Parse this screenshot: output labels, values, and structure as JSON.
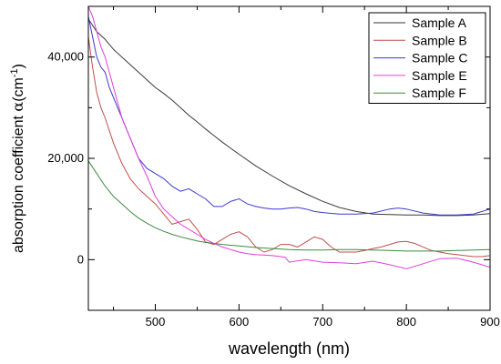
{
  "chart_data": {
    "type": "line",
    "title": "",
    "xlabel": "wavelength (nm)",
    "ylabel_main": "absorption coefficient ",
    "ylabel_symbol": "α",
    "ylabel_unit_open": "(cm",
    "ylabel_unit_exp": "-1",
    "ylabel_unit_close": ")",
    "xlim": [
      420,
      900
    ],
    "ylim": [
      -10000,
      50000
    ],
    "x_ticks": [
      500,
      600,
      700,
      800,
      900
    ],
    "x_tick_labels": [
      "500",
      "600",
      "700",
      "800",
      "900"
    ],
    "x_minor_ticks": [
      450,
      550,
      650,
      750,
      850
    ],
    "y_ticks": [
      0,
      20000,
      40000
    ],
    "y_tick_labels": [
      "0",
      "20,000",
      "40,000"
    ],
    "y_minor_ticks": [
      -10000,
      10000,
      30000,
      50000
    ],
    "grid": false,
    "legend_position": "top-right",
    "series": [
      {
        "name": "Sample A",
        "color": "#3a3a3a",
        "x": [
          420,
          430,
          440,
          450,
          460,
          470,
          480,
          490,
          500,
          510,
          520,
          530,
          540,
          550,
          560,
          570,
          580,
          590,
          600,
          620,
          640,
          660,
          680,
          700,
          720,
          740,
          760,
          780,
          800,
          820,
          840,
          860,
          880,
          900
        ],
        "y": [
          47500,
          45000,
          43500,
          41500,
          40000,
          38500,
          37000,
          35500,
          34000,
          32800,
          31500,
          30000,
          28500,
          27200,
          25800,
          24500,
          23200,
          22000,
          20800,
          18500,
          16500,
          14600,
          13000,
          11500,
          10300,
          9500,
          9000,
          8900,
          8800,
          8800,
          8700,
          8700,
          8800,
          9100
        ]
      },
      {
        "name": "Sample B",
        "color": "#c0504d",
        "x": [
          420,
          425,
          430,
          435,
          440,
          450,
          460,
          470,
          480,
          490,
          500,
          510,
          520,
          530,
          540,
          550,
          560,
          570,
          580,
          590,
          600,
          610,
          620,
          630,
          640,
          650,
          660,
          670,
          680,
          690,
          700,
          710,
          720,
          730,
          740,
          750,
          760,
          770,
          780,
          790,
          800,
          810,
          820,
          830,
          840,
          850,
          860,
          870,
          880,
          890,
          900
        ],
        "y": [
          44000,
          38000,
          33000,
          30000,
          28000,
          23000,
          19000,
          16000,
          14000,
          12500,
          11000,
          9000,
          7000,
          7500,
          8000,
          6000,
          3500,
          3000,
          4000,
          5000,
          5500,
          4500,
          2500,
          1500,
          2000,
          3000,
          3000,
          2500,
          3500,
          4500,
          4000,
          2500,
          1500,
          1500,
          1500,
          1800,
          2200,
          2500,
          3000,
          3500,
          3600,
          3200,
          2500,
          1800,
          1500,
          1200,
          1000,
          800,
          600,
          600,
          800
        ]
      },
      {
        "name": "Sample C",
        "color": "#3a3ad0",
        "x": [
          420,
          425,
          430,
          435,
          440,
          445,
          450,
          460,
          470,
          480,
          490,
          500,
          510,
          520,
          530,
          540,
          550,
          560,
          570,
          580,
          590,
          600,
          610,
          620,
          630,
          640,
          650,
          660,
          670,
          680,
          690,
          700,
          720,
          740,
          760,
          780,
          790,
          800,
          820,
          840,
          860,
          880,
          900
        ],
        "y": [
          48000,
          44000,
          40000,
          38000,
          37000,
          34000,
          32000,
          28000,
          24000,
          20000,
          18000,
          17000,
          16000,
          14500,
          13500,
          14000,
          13000,
          12000,
          10500,
          10500,
          11500,
          12000,
          11000,
          10500,
          10200,
          10000,
          10000,
          10200,
          10300,
          10000,
          9500,
          9300,
          9000,
          9000,
          9200,
          10000,
          10200,
          10000,
          9200,
          8800,
          8800,
          9000,
          10000
        ]
      },
      {
        "name": "Sample E",
        "color": "#e040e0",
        "x": [
          420,
          425,
          430,
          435,
          440,
          445,
          450,
          460,
          470,
          480,
          490,
          500,
          510,
          520,
          530,
          540,
          550,
          560,
          570,
          580,
          590,
          600,
          610,
          620,
          640,
          655,
          660,
          680,
          700,
          720,
          740,
          760,
          780,
          800,
          820,
          840,
          860,
          880,
          900
        ],
        "y": [
          50000,
          48000,
          45000,
          42000,
          40000,
          37000,
          34000,
          28000,
          24000,
          20000,
          16500,
          12500,
          10000,
          8500,
          7000,
          6000,
          5000,
          4000,
          3200,
          2500,
          2000,
          1500,
          1200,
          1000,
          800,
          500,
          -500,
          0,
          -500,
          -600,
          -800,
          -300,
          -1000,
          -1800,
          -800,
          200,
          300,
          -500,
          -1500
        ]
      },
      {
        "name": "Sample F",
        "color": "#3f8a3f",
        "x": [
          420,
          430,
          440,
          450,
          460,
          470,
          480,
          490,
          500,
          510,
          520,
          530,
          540,
          550,
          560,
          580,
          600,
          620,
          640,
          660,
          680,
          700,
          720,
          740,
          760,
          780,
          800,
          820,
          840,
          860,
          880,
          900
        ],
        "y": [
          19500,
          17000,
          14500,
          12500,
          11000,
          9500,
          8200,
          7200,
          6300,
          5600,
          5000,
          4500,
          4100,
          3700,
          3400,
          3000,
          2700,
          2400,
          2200,
          2000,
          1900,
          1900,
          2000,
          2000,
          1900,
          1800,
          1700,
          1700,
          1700,
          1800,
          1900,
          2000
        ]
      }
    ]
  }
}
